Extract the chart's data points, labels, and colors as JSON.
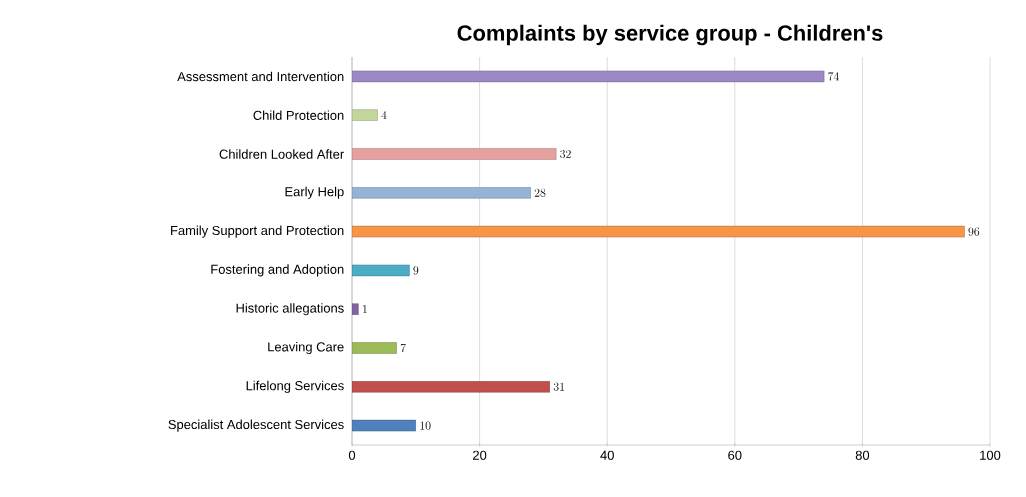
{
  "chart_data": {
    "type": "bar",
    "orientation": "horizontal",
    "title": "Complaints by service group - Children's",
    "categories": [
      "Assessment and Intervention",
      "Child Protection",
      "Children Looked After",
      "Early Help",
      "Family Support and Protection",
      "Fostering and Adoption",
      "Historic allegations",
      "Leaving Care",
      "Lifelong Services",
      "Specialist Adolescent Services"
    ],
    "values": [
      74,
      4,
      32,
      28,
      96,
      9,
      1,
      7,
      31,
      10
    ],
    "colors": [
      "#9c88c4",
      "#c3d69b",
      "#e6a0a0",
      "#95b3d7",
      "#f79646",
      "#4bacc6",
      "#8064a2",
      "#9bbb59",
      "#c0504d",
      "#4f81bd"
    ],
    "xlim": [
      0,
      100
    ],
    "xticks": [
      0,
      20,
      40,
      60,
      80,
      100
    ],
    "grid": "x",
    "data_labels": true
  }
}
